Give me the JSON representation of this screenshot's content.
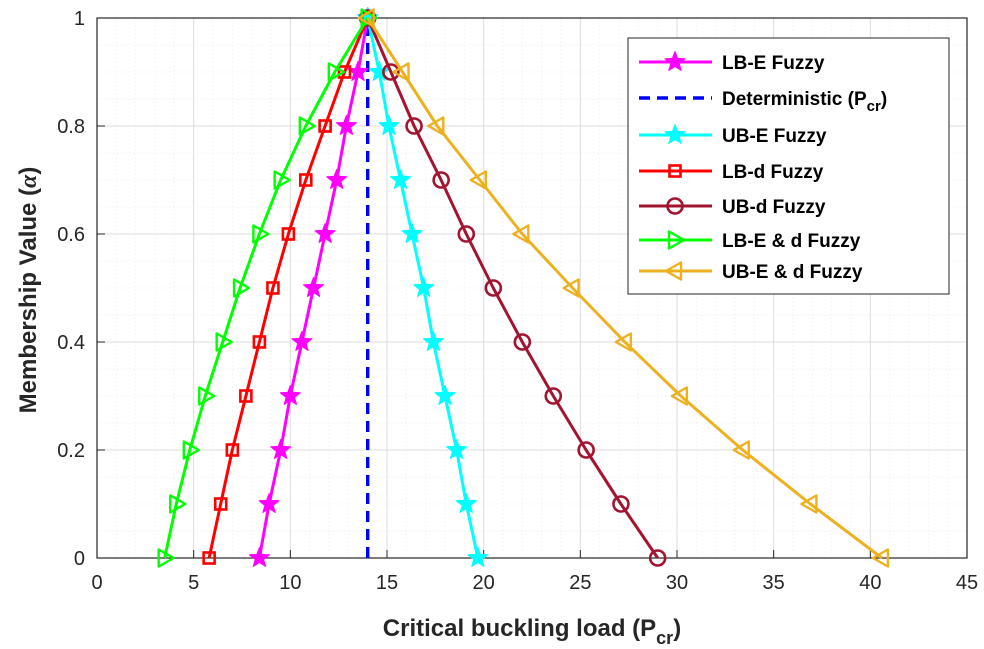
{
  "chart_data": {
    "type": "line",
    "xlabel": "Critical buckling load (P",
    "xlabel_sub": "cr",
    "xlabel_end": ")",
    "ylabel": "Membership Value (",
    "ylabel_symbol": "α",
    "ylabel_end": ")",
    "xlim": [
      0,
      45
    ],
    "ylim": [
      0,
      1
    ],
    "xticks": [
      "0",
      "5",
      "10",
      "15",
      "20",
      "25",
      "30",
      "35",
      "40",
      "45"
    ],
    "yticks": [
      "0",
      "0.2",
      "0.4",
      "0.6",
      "0.8",
      "1"
    ],
    "grid": "major and minor",
    "legend_position": "top-right",
    "alpha": [
      0,
      0.1,
      0.2,
      0.3,
      0.4,
      0.5,
      0.6,
      0.7,
      0.8,
      0.9,
      1
    ],
    "series": [
      {
        "name": "LB-E Fuzzy",
        "color": "#ff00ff",
        "marker": "star",
        "x": [
          8.4,
          8.9,
          9.5,
          10.0,
          10.6,
          11.2,
          11.8,
          12.4,
          12.9,
          13.5,
          14.0
        ]
      },
      {
        "name": "Deterministic (P",
        "name_sub": "cr",
        "name_end": ")",
        "color": "#0000ff",
        "marker": "none",
        "dashed": true,
        "x": [
          14.0,
          14.0
        ],
        "y": [
          0,
          1
        ]
      },
      {
        "name": "UB-E Fuzzy",
        "color": "#00ffff",
        "marker": "star",
        "x": [
          19.7,
          19.1,
          18.6,
          18.0,
          17.4,
          16.9,
          16.3,
          15.7,
          15.1,
          14.6,
          14.0
        ]
      },
      {
        "name": "LB-d Fuzzy",
        "color": "#ff0000",
        "marker": "square",
        "x": [
          5.8,
          6.4,
          7.0,
          7.7,
          8.4,
          9.1,
          9.9,
          10.8,
          11.8,
          12.8,
          14.0
        ]
      },
      {
        "name": "UB-d Fuzzy",
        "color": "#a2142f",
        "marker": "circle",
        "x": [
          29.0,
          27.1,
          25.3,
          23.6,
          22.0,
          20.5,
          19.1,
          17.8,
          16.4,
          15.2,
          14.0
        ]
      },
      {
        "name": "LB-E & d Fuzzy",
        "color": "#00ff00",
        "marker": "triangle-right",
        "x": [
          3.5,
          4.1,
          4.8,
          5.6,
          6.5,
          7.4,
          8.4,
          9.5,
          10.8,
          12.3,
          14.0
        ]
      },
      {
        "name": "UB-E & d Fuzzy",
        "color": "#edb120",
        "marker": "triangle-left",
        "x": [
          40.6,
          36.9,
          33.4,
          30.2,
          27.3,
          24.6,
          22.0,
          19.8,
          17.6,
          15.8,
          14.0
        ]
      }
    ]
  }
}
